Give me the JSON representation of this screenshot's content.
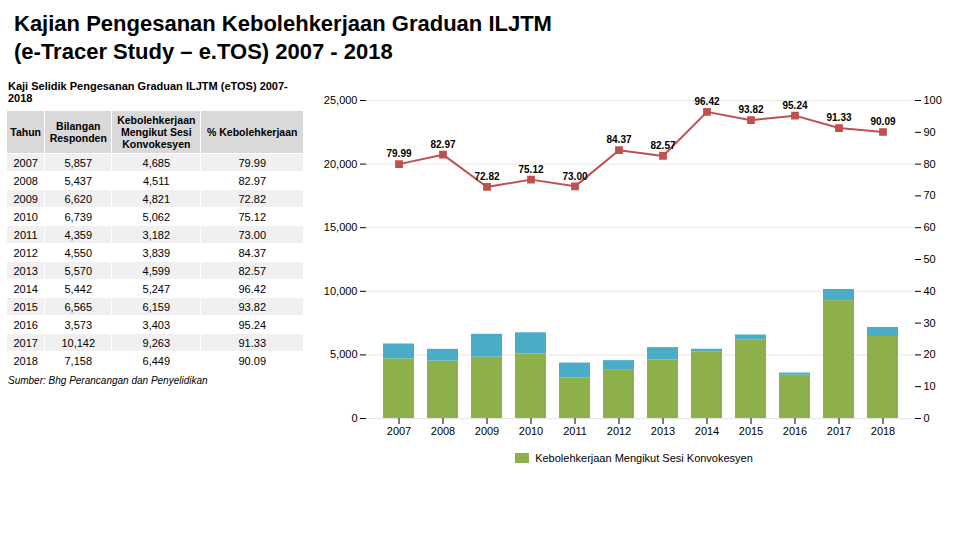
{
  "chart_data": [
    {
      "type": "bar",
      "title": "Kajian Pengesanan Kebolehkerjaan Graduan ILJTM",
      "subtitle": "(e-Tracer Study – e.TOS) 2007 - 2018",
      "categories": [
        "2007",
        "2008",
        "2009",
        "2010",
        "2011",
        "2012",
        "2013",
        "2014",
        "2015",
        "2016",
        "2017",
        "2018"
      ],
      "stacked": true,
      "grid": true,
      "legend": "bottom",
      "ylim": [
        0,
        25000
      ],
      "yticks": [
        0,
        {
          "value": 5000,
          "label": "5,000"
        },
        {
          "value": 10000,
          "label": "10,000"
        },
        {
          "value": 15000,
          "label": "15,000"
        },
        {
          "value": 20000,
          "label": "20,000"
        },
        {
          "value": 25000,
          "label": "25,000"
        }
      ],
      "y2lim": [
        0,
        100
      ],
      "y2ticks": [
        0,
        10,
        20,
        30,
        40,
        50,
        60,
        70,
        80,
        90,
        100
      ],
      "series": [
        {
          "name": "Kebolehkerjaan Mengikut Sesi Konvokesyen",
          "type": "bar",
          "color": "#8db04b",
          "values": [
            4685,
            4511,
            4821,
            5062,
            3182,
            3839,
            4599,
            5247,
            6159,
            3403,
            9263,
            6449
          ]
        },
        {
          "type": "bar",
          "color": "#4bacc6",
          "values": [
            1172,
            926,
            1799,
            1677,
            1177,
            711,
            971,
            195,
            406,
            170,
            879,
            709
          ]
        },
        {
          "type": "line",
          "axis": "y2",
          "color": "#c0504d",
          "marker": "square",
          "line_style": "solid",
          "data_labels": true,
          "values": [
            79.99,
            82.97,
            72.82,
            75.12,
            73.0,
            84.37,
            82.57,
            96.42,
            93.82,
            95.24,
            91.33,
            90.09
          ],
          "value_labels": [
            "79.99",
            "82.97",
            "72.82",
            "75.12",
            "73.00",
            "84.37",
            "82.57",
            "96.42",
            "93.82",
            "95.24",
            "91.33",
            "90.09"
          ]
        }
      ]
    },
    {
      "type": "table",
      "title": "Kaji Selidik Pengesanan Graduan ILJTM (eTOS) 2007-2018",
      "columns": [
        "Tahun",
        "Bilangan\nResponden",
        "Kebolehkerjaan\nMengikut Sesi\nKonvokesyen",
        "% Kebolehkerjaan"
      ],
      "categories": [
        "2007",
        "2008",
        "2009",
        "2010",
        "2011",
        "2012",
        "2013",
        "2014",
        "2015",
        "2016",
        "2017",
        "2018"
      ],
      "series": [
        {
          "values": [
            5857,
            5437,
            6620,
            6739,
            4359,
            4550,
            5570,
            5442,
            6565,
            3573,
            10142,
            7158
          ],
          "value_labels": [
            "5,857",
            "5,437",
            "6,620",
            "6,739",
            "4,359",
            "4,550",
            "5,570",
            "5,442",
            "6,565",
            "3,573",
            "10,142",
            "7,158"
          ]
        },
        {
          "values": [
            4685,
            4511,
            4821,
            5062,
            3182,
            3839,
            4599,
            5247,
            6159,
            3403,
            9263,
            6449
          ],
          "value_labels": [
            "4,685",
            "4,511",
            "4,821",
            "5,062",
            "3,182",
            "3,839",
            "4,599",
            "5,247",
            "6,159",
            "3,403",
            "9,263",
            "6,449"
          ]
        },
        {
          "values": [
            79.99,
            82.97,
            72.82,
            75.12,
            73.0,
            84.37,
            82.57,
            96.42,
            93.82,
            95.24,
            91.33,
            90.09
          ],
          "value_labels": [
            "79.99",
            "82.97",
            "72.82",
            "75.12",
            "73.00",
            "84.37",
            "82.57",
            "96.42",
            "93.82",
            "95.24",
            "91.33",
            "90.09"
          ]
        }
      ],
      "caption": "Sumber: Bhg Perancangan dan Penyelidikan"
    }
  ]
}
